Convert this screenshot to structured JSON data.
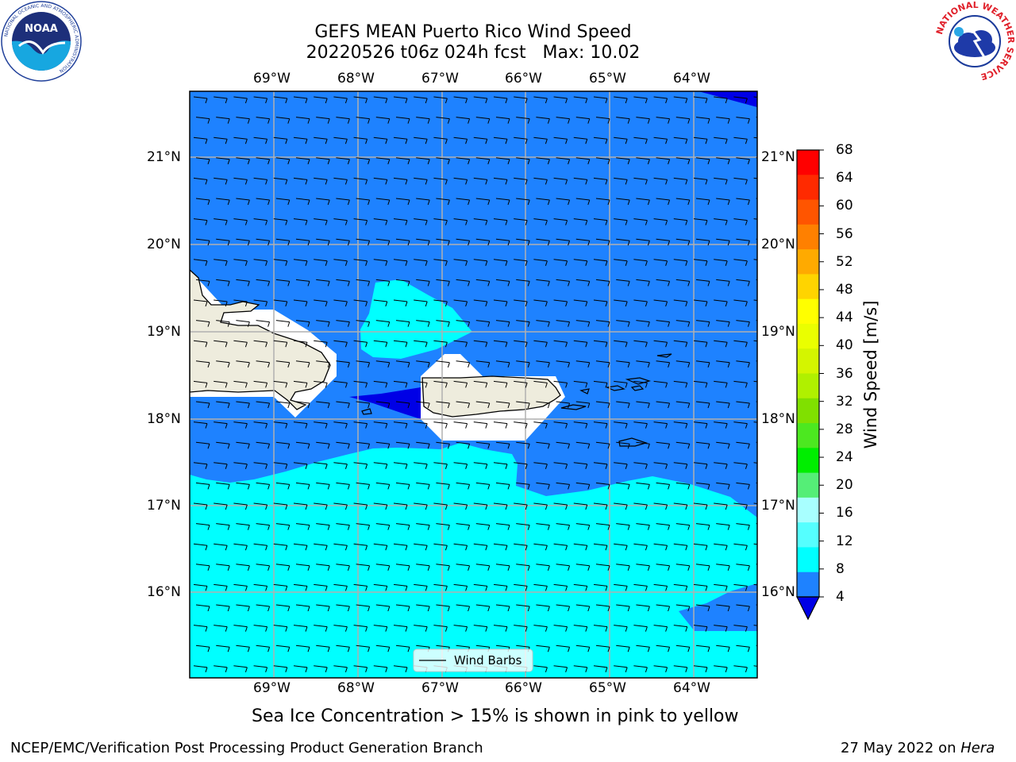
{
  "header": {
    "title_line1": "GEFS MEAN Puerto Rico Wind Speed",
    "title_line2": "20220526 t06z 024h fcst   Max: 10.02"
  },
  "map": {
    "lon_labels": [
      "69°W",
      "68°W",
      "67°W",
      "66°W",
      "65°W",
      "64°W"
    ],
    "lat_labels": [
      "21°N",
      "20°N",
      "19°N",
      "18°N",
      "17°N",
      "16°N"
    ],
    "legend_label": "Wind Barbs"
  },
  "colorbar": {
    "title": "Wind Speed [m/s]",
    "ticks": [
      "68",
      "64",
      "60",
      "56",
      "52",
      "48",
      "44",
      "40",
      "36",
      "32",
      "28",
      "24",
      "20",
      "16",
      "12",
      "8",
      "4"
    ],
    "colors": [
      "#ff0000",
      "#ff2a00",
      "#ff5500",
      "#ff8000",
      "#ffaa00",
      "#ffd400",
      "#ffff00",
      "#eaff00",
      "#d4f500",
      "#b0f000",
      "#80e000",
      "#4ce820",
      "#00ee00",
      "#55ee77",
      "#a8ffff",
      "#55ffff",
      "#00ffff",
      "#1e82ff"
    ]
  },
  "caption": "Sea Ice Concentration > 15% is shown in pink to yellow",
  "footer": {
    "left": "NCEP/EMC/Verification Post Processing Product Generation Branch",
    "right_prefix": "27 May 2022 on ",
    "right_host": "Hera"
  },
  "logos": {
    "noaa_text": "NOAA",
    "noaa_ring": "NATIONAL OCEANIC AND ATMOSPHERIC ADMINISTRATION",
    "noaa_ring_bottom": "U.S. DEPARTMENT OF COMMERCE",
    "nws_ring": "NATIONAL WEATHER SERVICE"
  },
  "colors": {
    "band_4_8": "#1e82ff",
    "band_8_12": "#00ffff",
    "band_0_4": "#0000e6",
    "land": "#eeecdd"
  }
}
